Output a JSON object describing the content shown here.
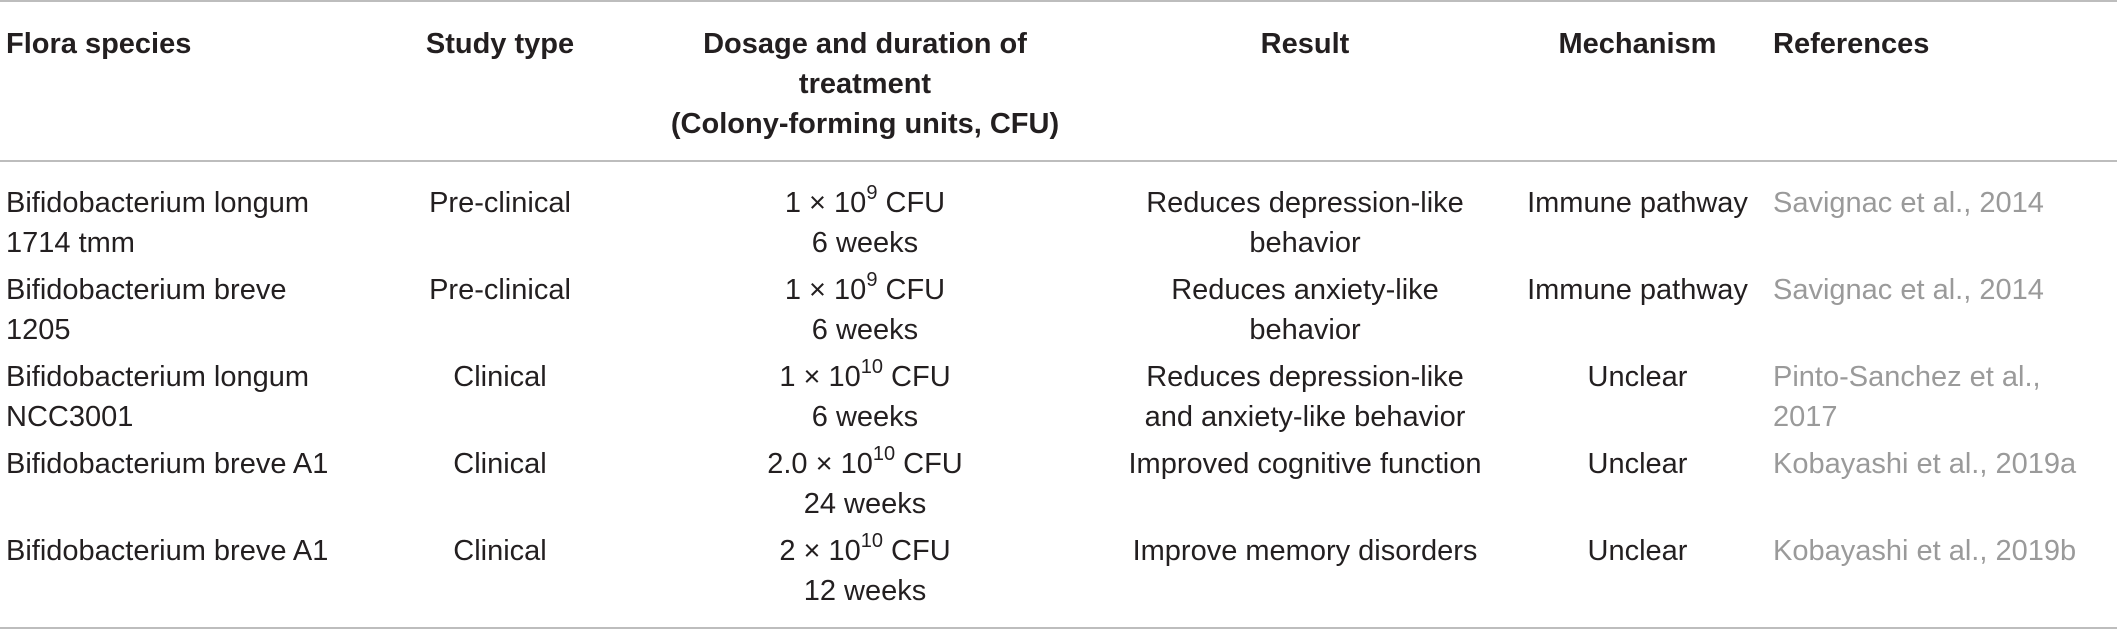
{
  "table": {
    "headers": {
      "flora": "Flora species",
      "study": "Study type",
      "dosage_line1": "Dosage and duration of treatment",
      "dosage_line2": "(Colony-forming units, CFU)",
      "result": "Result",
      "mechanism": "Mechanism",
      "references": "References"
    },
    "rows": [
      {
        "flora_line1": "Bifidobacterium longum",
        "flora_line2": "1714 tmm",
        "study": "Pre-clinical",
        "dose_base": "1 × 10",
        "dose_exp": "9",
        "dose_unit": " CFU",
        "duration": "6 weeks",
        "result_line1": "Reduces depression-like",
        "result_line2": "behavior",
        "mechanism": "Immune pathway",
        "ref_line1": "Savignac et al., 2014",
        "ref_line2": ""
      },
      {
        "flora_line1": "Bifidobacterium breve",
        "flora_line2": "1205",
        "study": "Pre-clinical",
        "dose_base": "1 × 10",
        "dose_exp": "9",
        "dose_unit": " CFU",
        "duration": "6 weeks",
        "result_line1": "Reduces anxiety-like",
        "result_line2": "behavior",
        "mechanism": "Immune pathway",
        "ref_line1": "Savignac et al., 2014",
        "ref_line2": ""
      },
      {
        "flora_line1": "Bifidobacterium longum",
        "flora_line2": "NCC3001",
        "study": "Clinical",
        "dose_base": "1 × 10",
        "dose_exp": "10",
        "dose_unit": " CFU",
        "duration": "6 weeks",
        "result_line1": "Reduces depression-like",
        "result_line2": "and anxiety-like behavior",
        "mechanism": "Unclear",
        "ref_line1": "Pinto-Sanchez et al.,",
        "ref_line2": "2017"
      },
      {
        "flora_line1": "Bifidobacterium breve A1",
        "flora_line2": "",
        "study": "Clinical",
        "dose_base": "2.0 × 10",
        "dose_exp": "10",
        "dose_unit": " CFU",
        "duration": "24 weeks",
        "result_line1": "Improved cognitive function",
        "result_line2": "",
        "mechanism": "Unclear",
        "ref_line1": "Kobayashi et al., 2019a",
        "ref_line2": ""
      },
      {
        "flora_line1": "Bifidobacterium breve A1",
        "flora_line2": "",
        "study": "Clinical",
        "dose_base": "2 × 10",
        "dose_exp": "10",
        "dose_unit": " CFU",
        "duration": "12 weeks",
        "result_line1": "Improve memory disorders",
        "result_line2": "",
        "mechanism": "Unclear",
        "ref_line1": "Kobayashi et al., 2019b",
        "ref_line2": ""
      }
    ]
  }
}
